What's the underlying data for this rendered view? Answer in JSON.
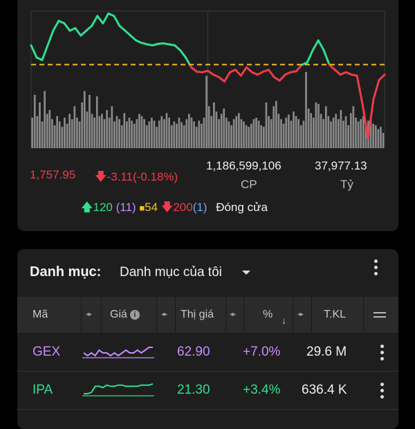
{
  "index": {
    "price": "1,757.95",
    "change": "-3.11(-0.18%)",
    "volume_value": "1,186,599,106",
    "volume_unit": "CP",
    "value_value": "37,977.13",
    "value_unit": "Tỷ",
    "breadth": {
      "up": "120",
      "up_ceiling": "(11)",
      "unchanged": "54",
      "down": "200",
      "down_floor": "(1)",
      "status": "Đóng cửa"
    }
  },
  "colors": {
    "up": "#2fe08f",
    "down": "#ef3b4b",
    "reference": "#f5c01f",
    "ceiling": "#c98bff",
    "floor": "#6aa9ff",
    "volume_bar": "#9e9e9e"
  },
  "chart_data": {
    "type": "line",
    "reference_level": 1761.06,
    "ylim": [
      1744,
      1772
    ],
    "series": [
      {
        "values": [
          1765,
          1762.5,
          1762,
          1765,
          1768,
          1770,
          1769.5,
          1768,
          1768.5,
          1767,
          1768,
          1769,
          1771,
          1769.5,
          1771.5,
          1771,
          1769,
          1768,
          1767,
          1766,
          1765.5,
          1765.2,
          1765,
          1765.3,
          1765.4,
          1765.2,
          1765,
          1764,
          1762.5,
          1760.5,
          1759.6,
          1759.5,
          1759.8,
          1759,
          1758.5,
          1757.6,
          1759.5,
          1760,
          1758.8,
          1760.5,
          1759.5,
          1759,
          1759.6,
          1760,
          1758.5,
          1757.8,
          1759,
          1759.5,
          1759.7,
          1761,
          1761.5,
          1764,
          1766,
          1764,
          1761,
          1760,
          1759,
          1759.5,
          1759,
          1758.8,
          1753,
          1746,
          1754,
          1757.9,
          1759
        ]
      }
    ],
    "volume": [
      40,
      70,
      42,
      60,
      35,
      75,
      45,
      50,
      38,
      30,
      42,
      35,
      28,
      40,
      32,
      45,
      38,
      55,
      40,
      35,
      60,
      75,
      48,
      70,
      45,
      40,
      68,
      42,
      45,
      38,
      50,
      40,
      55,
      35,
      42,
      38,
      30,
      46,
      35,
      40,
      36,
      32,
      38,
      45,
      42,
      38,
      30,
      35,
      40,
      36,
      28,
      36,
      42,
      38,
      46,
      40,
      30,
      35,
      32,
      40,
      34,
      30,
      38,
      45,
      40,
      35,
      28,
      36,
      32,
      40,
      95,
      55,
      42,
      60,
      48,
      38,
      45,
      52,
      40,
      35,
      30,
      38,
      42,
      46,
      38,
      35,
      30,
      28,
      32,
      38,
      40,
      36,
      30,
      28,
      60,
      42,
      38,
      55,
      62,
      45,
      38,
      32,
      40,
      44,
      36,
      48,
      42,
      38,
      30,
      36,
      100,
      52,
      46,
      40,
      60,
      58,
      45,
      38,
      55,
      42,
      35,
      40,
      45,
      38,
      50,
      36,
      42,
      30,
      46,
      55,
      40,
      35,
      38,
      42,
      28,
      36,
      38,
      32,
      30,
      25,
      28,
      20
    ]
  },
  "watchlist": {
    "title": "Danh mục:",
    "selected": "Danh mục của tôi",
    "columns": {
      "code": "Mã",
      "price": "Giá",
      "match_price": "Thị giá",
      "pct": "%",
      "volume": "T.KL"
    },
    "rows": [
      {
        "code": "GEX",
        "match_price": "62.90",
        "pct": "+7.0%",
        "volume": "29.6 M",
        "trend": "ceiling",
        "spark": [
          3,
          4,
          3,
          4,
          2,
          3,
          3,
          4,
          3,
          4,
          3,
          2,
          3,
          3,
          2,
          3,
          2,
          1,
          1
        ]
      },
      {
        "code": "IPA",
        "match_price": "21.30",
        "pct": "+3.4%",
        "volume": "636.4 K",
        "trend": "up",
        "spark": [
          9,
          9,
          8,
          3,
          3,
          4,
          2,
          3,
          3,
          2,
          2,
          3,
          3,
          3,
          3,
          2,
          2,
          2,
          1
        ]
      }
    ]
  }
}
